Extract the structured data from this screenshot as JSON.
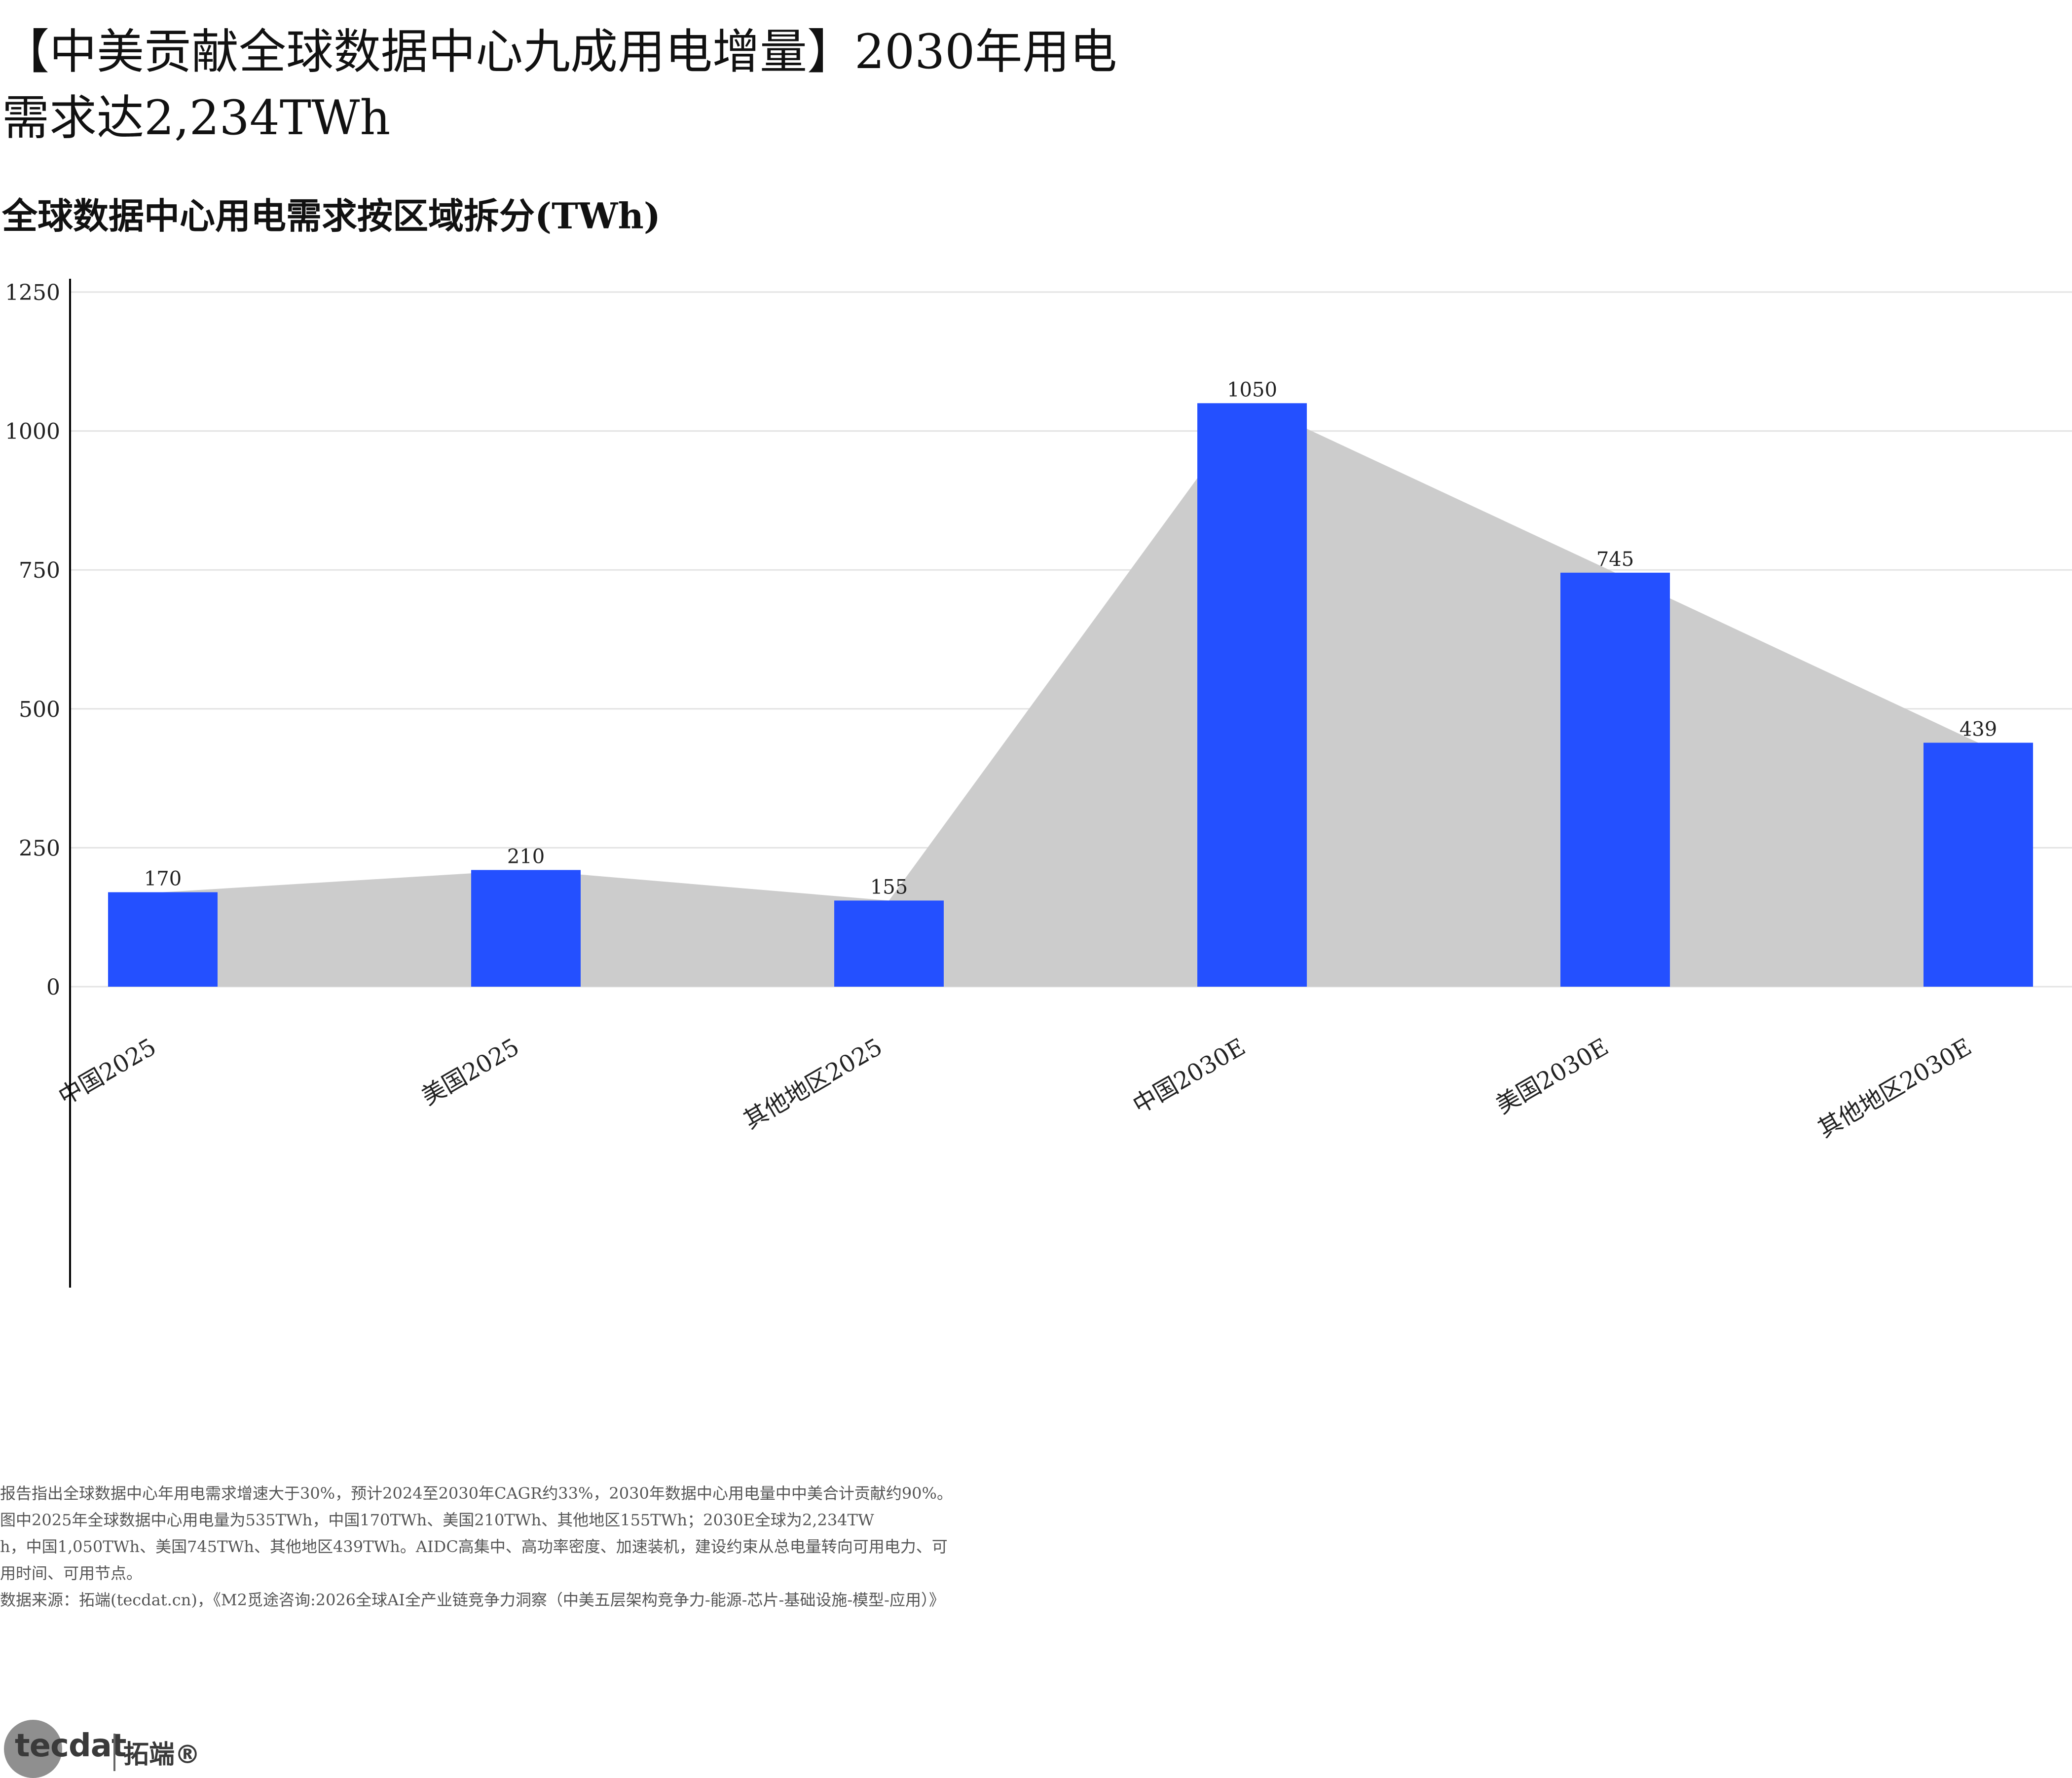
{
  "header": {
    "title": "【中美贡献全球数据中心九成用电增量】2030年用电需求达2,234TWh",
    "subtitle": "全球数据中心用电需求按区域拆分(TWh)"
  },
  "chart_data": {
    "type": "bar",
    "categories": [
      "中国2025",
      "美国2025",
      "其他地区2025",
      "中国2030E",
      "美国2030E",
      "其他地区2030E"
    ],
    "values": [
      170,
      210,
      155,
      1050,
      745,
      439
    ],
    "data_labels": [
      "170",
      "210",
      "155",
      "1050",
      "745",
      "439"
    ],
    "ylim": [
      -60,
      1250
    ],
    "yticks": [
      0,
      250,
      500,
      750,
      1000,
      1250
    ],
    "bar_color": "#2450ff",
    "area_color": "#cccccc",
    "grid": true,
    "xlabel": "",
    "ylabel": ""
  },
  "notes": {
    "line1": "报告指出全球数据中心年用电需求增速大于30%，预计2024至2030年CAGR约33%，2030年数据中心用电量中中美合计贡献约90%。",
    "line2": "图中2025年全球数据中心用电量为535TWh，中国170TWh、美国210TWh、其他地区155TWh；2030E全球为2,234TW",
    "line3": "h，中国1,050TWh、美国745TWh、其他地区439TWh。AIDC高集中、高功率密度、加速装机，建设约束从总电量转向可用电力、可",
    "line4": "用时间、可用节点。",
    "source": "数据来源：拓端(tecdat.cn)，《M2觅途咨询:2026全球AI全产业链竞争力洞察（中美五层架构竞争力-能源-芯片-基础设施-模型-应用）》"
  },
  "logo": {
    "brand": "tecdat",
    "brand_cn": "拓端®"
  }
}
